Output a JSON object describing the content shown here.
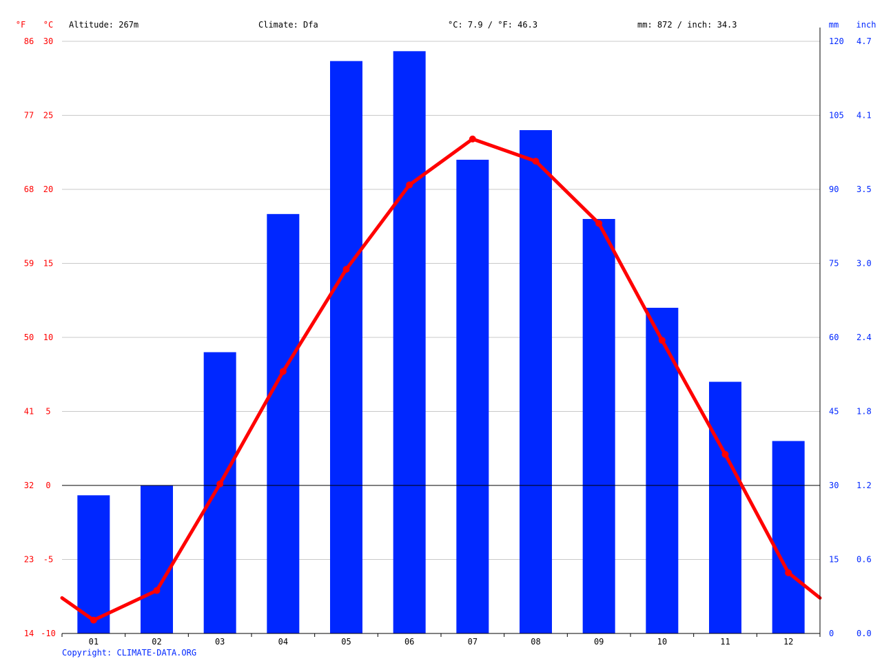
{
  "header": {
    "altitude": "Altitude: 267m",
    "climate": "Climate: Dfa",
    "temperature_avg": "°C: 7.9 / °F: 46.3",
    "precipitation_total": "mm: 872 / inch: 34.3"
  },
  "axis_units": {
    "fahrenheit": "°F",
    "celsius": "°C",
    "mm": "mm",
    "inch": "inch"
  },
  "copyright": "Copyright: CLIMATE-DATA.ORG",
  "colors": {
    "temperature": "#ff0000",
    "precipitation": "#0027ff",
    "grid": "#c8c8c8",
    "zero_line": "#000000"
  },
  "chart_data": {
    "type": "bar",
    "categories": [
      "01",
      "02",
      "03",
      "04",
      "05",
      "06",
      "07",
      "08",
      "09",
      "10",
      "11",
      "12"
    ],
    "series": [
      {
        "type": "bar",
        "axis": "right",
        "unit": "mm",
        "values": [
          28,
          30,
          57,
          85,
          116,
          118,
          96,
          102,
          84,
          66,
          51,
          39
        ]
      },
      {
        "type": "line",
        "axis": "left",
        "unit": "°C",
        "values": [
          -9.1,
          -7.1,
          0.1,
          7.7,
          14.6,
          20.3,
          23.4,
          21.9,
          17.7,
          9.8,
          2.1,
          -5.9
        ],
        "edge_values": [
          -7.6,
          -7.6
        ]
      }
    ],
    "y_left": {
      "label": "°C",
      "ylim": [
        -10,
        30
      ],
      "ticks": [
        -10,
        -5,
        0,
        5,
        10,
        15,
        20,
        25,
        30
      ]
    },
    "y_left_f": {
      "label": "°F",
      "ticks": [
        14,
        23,
        32,
        41,
        50,
        59,
        68,
        77,
        86
      ]
    },
    "y_right": {
      "label": "mm",
      "ylim": [
        0,
        120
      ],
      "ticks": [
        0,
        15,
        30,
        45,
        60,
        75,
        90,
        105,
        120
      ]
    },
    "y_right_inch": {
      "label": "inch",
      "ticks": [
        "0.0",
        "0.6",
        "1.2",
        "1.8",
        "2.4",
        "3.0",
        "3.5",
        "4.1",
        "4.7"
      ]
    },
    "grid": true,
    "legend": "none"
  }
}
